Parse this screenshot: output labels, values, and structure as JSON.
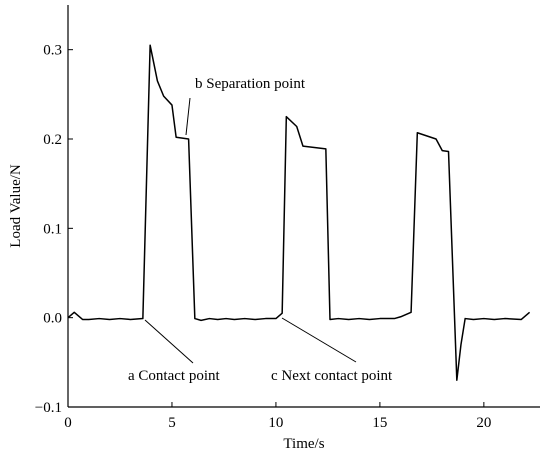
{
  "chart_data": {
    "type": "line",
    "x_label": "Time/s",
    "y_label": "Load Value/N",
    "annotations": [
      "b Separation point",
      "a Contact point",
      "c Next contact point"
    ],
    "x": [
      0,
      0.3,
      0.7,
      1,
      1.5,
      2,
      2.5,
      3,
      3.6,
      3.95,
      4.3,
      4.6,
      5.0,
      5.2,
      5.8,
      6.1,
      6.4,
      6.8,
      7.2,
      7.6,
      8,
      8.5,
      9,
      9.5,
      10.0,
      10.3,
      10.5,
      11.0,
      11.3,
      12.4,
      12.6,
      13,
      13.5,
      14,
      14.5,
      15,
      15.7,
      16,
      16.5,
      16.8,
      17.7,
      18.0,
      18.3,
      18.7,
      18.9,
      19.1,
      19.5,
      20,
      20.5,
      21,
      21.8,
      22.2
    ],
    "series": [
      {
        "color": "#000000",
        "values": [
          0,
          0.006,
          -0.002,
          -0.002,
          -0.001,
          -0.002,
          -0.001,
          -0.002,
          -0.001,
          0.305,
          0.265,
          0.248,
          0.238,
          0.202,
          0.2,
          -0.001,
          -0.003,
          -0.001,
          -0.002,
          -0.001,
          -0.002,
          -0.001,
          -0.002,
          -0.001,
          -0.001,
          0.005,
          0.225,
          0.214,
          0.192,
          0.189,
          -0.002,
          -0.001,
          -0.002,
          -0.001,
          -0.002,
          -0.001,
          -0.001,
          0.001,
          0.006,
          0.207,
          0.2,
          0.187,
          0.186,
          -0.07,
          -0.03,
          -0.001,
          -0.002,
          -0.001,
          -0.002,
          -0.001,
          -0.002,
          0.006
        ]
      }
    ],
    "xlim": [
      0,
      22.7
    ],
    "ylim": [
      -0.1,
      0.35
    ],
    "xticks": [
      0,
      5,
      10,
      15,
      20
    ],
    "yticks": [
      {
        "value": -0.1,
        "label": "−0.1"
      },
      {
        "value": 0,
        "label": "0.0"
      },
      {
        "value": 0.1,
        "label": "0.1"
      },
      {
        "value": 0.2,
        "label": "0.2"
      },
      {
        "value": 0.3,
        "label": "0.3"
      }
    ]
  }
}
